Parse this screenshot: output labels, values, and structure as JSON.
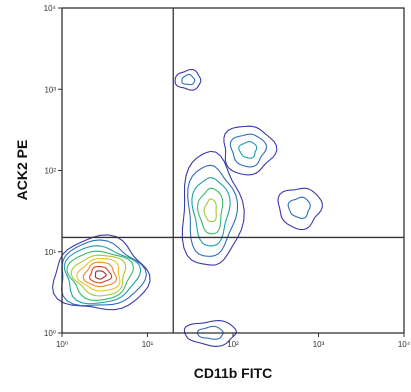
{
  "chart_data": {
    "type": "contour",
    "xlabel": "CD11b FITC",
    "ylabel": "ACK2 PE",
    "xscale": "log",
    "yscale": "log",
    "xlim": [
      1,
      10000
    ],
    "ylim": [
      1,
      10000
    ],
    "x_ticks": [
      {
        "value": 1,
        "label": "10⁰"
      },
      {
        "value": 10,
        "label": "10¹"
      },
      {
        "value": 100,
        "label": "10²"
      },
      {
        "value": 1000,
        "label": "10³"
      },
      {
        "value": 10000,
        "label": "10⁴"
      }
    ],
    "y_ticks": [
      {
        "value": 1,
        "label": "10⁰"
      },
      {
        "value": 10,
        "label": "10¹"
      },
      {
        "value": 100,
        "label": "10²"
      },
      {
        "value": 1000,
        "label": "10³"
      },
      {
        "value": 10000,
        "label": "10⁴"
      }
    ],
    "gates": {
      "x": 20,
      "y": 15
    },
    "populations": [
      {
        "x": 2.8,
        "y": 5.2,
        "x_spread": 0.55,
        "y_spread": 0.45,
        "density": 1.0
      },
      {
        "x": 55,
        "y": 32,
        "x_spread": 0.35,
        "y_spread": 0.7,
        "density": 0.55
      },
      {
        "x": 150,
        "y": 180,
        "x_spread": 0.3,
        "y_spread": 0.3,
        "density": 0.3
      },
      {
        "x": 600,
        "y": 35,
        "x_spread": 0.25,
        "y_spread": 0.25,
        "density": 0.15
      },
      {
        "x": 55,
        "y": 1.0,
        "x_spread": 0.3,
        "y_spread": 0.15,
        "density": 0.12
      },
      {
        "x": 30,
        "y": 1300,
        "x_spread": 0.15,
        "y_spread": 0.12,
        "density": 0.08
      }
    ],
    "contour_colors": [
      "#3a3aa8",
      "#2f6fb8",
      "#1fa0a8",
      "#3bb86a",
      "#a8c83a",
      "#e8c22f",
      "#e88a2f",
      "#d8402a",
      "#b02020"
    ],
    "grid": false
  }
}
